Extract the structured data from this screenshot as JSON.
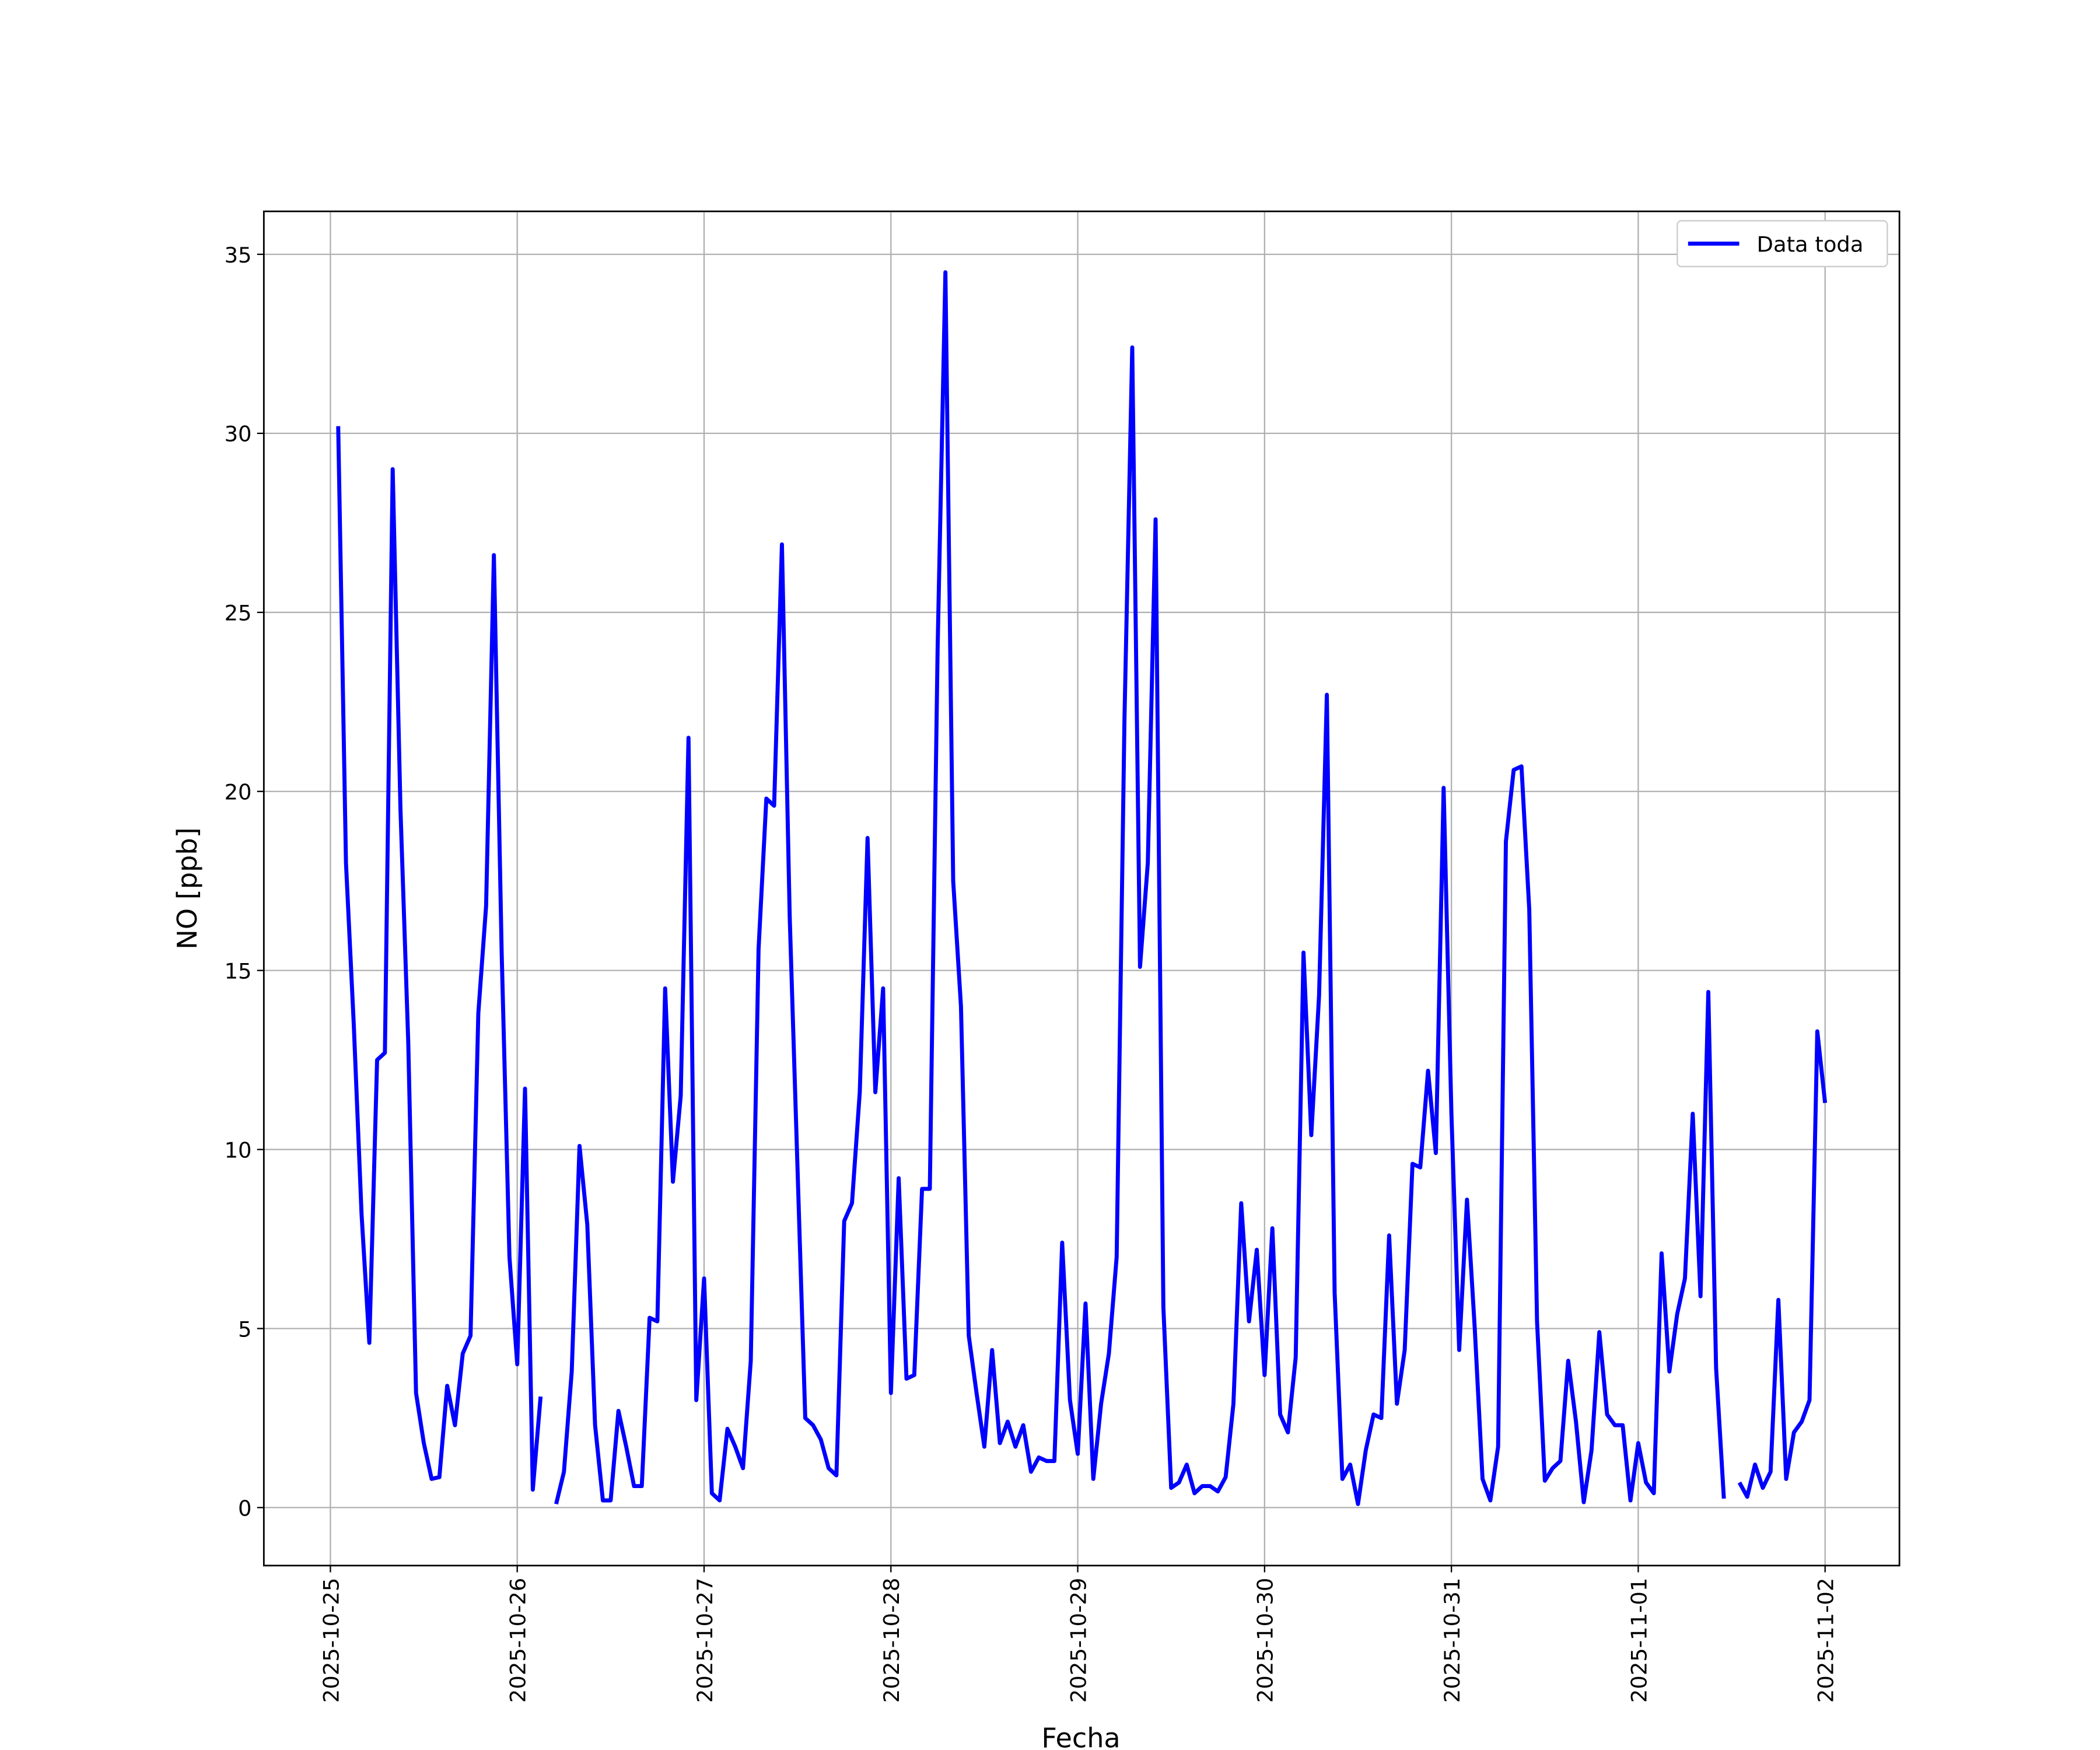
{
  "chart_data": {
    "type": "line",
    "xlabel": "Fecha",
    "ylabel": "NO [ppb]",
    "x": [
      "2025-10-25 01:00",
      "2025-10-25 02:00",
      "2025-10-25 03:00",
      "2025-10-25 04:00",
      "2025-10-25 05:00",
      "2025-10-25 06:00",
      "2025-10-25 07:00",
      "2025-10-25 08:00",
      "2025-10-25 09:00",
      "2025-10-25 10:00",
      "2025-10-25 11:00",
      "2025-10-25 12:00",
      "2025-10-25 13:00",
      "2025-10-25 14:00",
      "2025-10-25 15:00",
      "2025-10-25 16:00",
      "2025-10-25 17:00",
      "2025-10-25 18:00",
      "2025-10-25 19:00",
      "2025-10-25 20:00",
      "2025-10-25 21:00",
      "2025-10-25 22:00",
      "2025-10-25 23:00",
      "2025-10-26 00:00",
      "2025-10-26 01:00",
      "2025-10-26 02:00",
      "2025-10-26 03:00",
      "2025-10-26 04:00",
      "2025-10-26 05:00",
      "2025-10-26 06:00",
      "2025-10-26 07:00",
      "2025-10-26 08:00",
      "2025-10-26 09:00",
      "2025-10-26 10:00",
      "2025-10-26 11:00",
      "2025-10-26 12:00",
      "2025-10-26 13:00",
      "2025-10-26 14:00",
      "2025-10-26 15:00",
      "2025-10-26 16:00",
      "2025-10-26 17:00",
      "2025-10-26 18:00",
      "2025-10-26 19:00",
      "2025-10-26 20:00",
      "2025-10-26 21:00",
      "2025-10-26 22:00",
      "2025-10-26 23:00",
      "2025-10-27 00:00",
      "2025-10-27 01:00",
      "2025-10-27 02:00",
      "2025-10-27 03:00",
      "2025-10-27 04:00",
      "2025-10-27 05:00",
      "2025-10-27 06:00",
      "2025-10-27 07:00",
      "2025-10-27 08:00",
      "2025-10-27 09:00",
      "2025-10-27 10:00",
      "2025-10-27 11:00",
      "2025-10-27 12:00",
      "2025-10-27 13:00",
      "2025-10-27 14:00",
      "2025-10-27 15:00",
      "2025-10-27 16:00",
      "2025-10-27 17:00",
      "2025-10-27 18:00",
      "2025-10-27 19:00",
      "2025-10-27 20:00",
      "2025-10-27 21:00",
      "2025-10-27 22:00",
      "2025-10-27 23:00",
      "2025-10-28 00:00",
      "2025-10-28 01:00",
      "2025-10-28 02:00",
      "2025-10-28 03:00",
      "2025-10-28 04:00",
      "2025-10-28 05:00",
      "2025-10-28 06:00",
      "2025-10-28 07:00",
      "2025-10-28 08:00",
      "2025-10-28 09:00",
      "2025-10-28 10:00",
      "2025-10-28 11:00",
      "2025-10-28 12:00",
      "2025-10-28 13:00",
      "2025-10-28 14:00",
      "2025-10-28 15:00",
      "2025-10-28 16:00",
      "2025-10-28 17:00",
      "2025-10-28 18:00",
      "2025-10-28 19:00",
      "2025-10-28 20:00",
      "2025-10-28 21:00",
      "2025-10-28 22:00",
      "2025-10-28 23:00",
      "2025-10-29 00:00",
      "2025-10-29 01:00",
      "2025-10-29 02:00",
      "2025-10-29 03:00",
      "2025-10-29 04:00",
      "2025-10-29 05:00",
      "2025-10-29 06:00",
      "2025-10-29 07:00",
      "2025-10-29 08:00",
      "2025-10-29 09:00",
      "2025-10-29 10:00",
      "2025-10-29 11:00",
      "2025-10-29 12:00",
      "2025-10-29 13:00",
      "2025-10-29 14:00",
      "2025-10-29 15:00",
      "2025-10-29 16:00",
      "2025-10-29 17:00",
      "2025-10-29 18:00",
      "2025-10-29 19:00",
      "2025-10-29 20:00",
      "2025-10-29 21:00",
      "2025-10-29 22:00",
      "2025-10-29 23:00",
      "2025-10-30 00:00",
      "2025-10-30 01:00",
      "2025-10-30 02:00",
      "2025-10-30 03:00",
      "2025-10-30 04:00",
      "2025-10-30 05:00",
      "2025-10-30 06:00",
      "2025-10-30 07:00",
      "2025-10-30 08:00",
      "2025-10-30 09:00",
      "2025-10-30 10:00",
      "2025-10-30 11:00",
      "2025-10-30 12:00",
      "2025-10-30 13:00",
      "2025-10-30 14:00",
      "2025-10-30 15:00",
      "2025-10-30 16:00",
      "2025-10-30 17:00",
      "2025-10-30 18:00",
      "2025-10-30 19:00",
      "2025-10-30 20:00",
      "2025-10-30 21:00",
      "2025-10-30 22:00",
      "2025-10-30 23:00",
      "2025-10-31 00:00",
      "2025-10-31 01:00",
      "2025-10-31 02:00",
      "2025-10-31 03:00",
      "2025-10-31 04:00",
      "2025-10-31 05:00",
      "2025-10-31 06:00",
      "2025-10-31 07:00",
      "2025-10-31 08:00",
      "2025-10-31 09:00",
      "2025-10-31 10:00",
      "2025-10-31 11:00",
      "2025-10-31 12:00",
      "2025-10-31 13:00",
      "2025-10-31 14:00",
      "2025-10-31 15:00",
      "2025-10-31 16:00",
      "2025-10-31 17:00",
      "2025-10-31 18:00",
      "2025-10-31 19:00",
      "2025-10-31 20:00",
      "2025-10-31 21:00",
      "2025-10-31 22:00",
      "2025-10-31 23:00",
      "2025-11-01 00:00",
      "2025-11-01 01:00",
      "2025-11-01 02:00",
      "2025-11-01 03:00",
      "2025-11-01 04:00",
      "2025-11-01 05:00",
      "2025-11-01 06:00",
      "2025-11-01 07:00",
      "2025-11-01 08:00",
      "2025-11-01 09:00",
      "2025-11-01 10:00",
      "2025-11-01 11:00",
      "2025-11-01 12:00",
      "2025-11-01 13:00",
      "2025-11-01 14:00",
      "2025-11-01 15:00",
      "2025-11-01 16:00",
      "2025-11-01 17:00",
      "2025-11-01 18:00",
      "2025-11-01 19:00",
      "2025-11-01 20:00",
      "2025-11-01 21:00",
      "2025-11-01 22:00",
      "2025-11-01 23:00",
      "2025-11-02 00:00"
    ],
    "series": [
      {
        "name": "Data toda",
        "color": "#0000ff",
        "values": [
          30.2,
          18.0,
          13.5,
          8.2,
          4.6,
          12.5,
          12.7,
          29.0,
          19.5,
          13.0,
          3.2,
          1.8,
          0.8,
          0.85,
          3.4,
          2.3,
          4.3,
          4.8,
          13.8,
          16.8,
          26.6,
          15.5,
          7.0,
          4.0,
          11.7,
          0.5,
          3.1,
          null,
          0.1,
          1.0,
          3.8,
          10.1,
          7.9,
          2.3,
          0.2,
          0.2,
          2.7,
          1.7,
          0.6,
          0.6,
          5.3,
          5.2,
          14.5,
          9.1,
          11.5,
          21.5,
          3.0,
          6.4,
          0.4,
          0.2,
          2.2,
          1.7,
          1.1,
          4.1,
          15.6,
          19.8,
          19.6,
          26.9,
          16.5,
          9.5,
          2.5,
          2.3,
          1.9,
          1.1,
          0.9,
          8.0,
          8.5,
          11.6,
          18.7,
          11.6,
          14.5,
          3.2,
          9.2,
          3.6,
          3.7,
          8.9,
          8.9,
          24.0,
          34.5,
          17.5,
          14.0,
          4.8,
          3.2,
          1.7,
          4.4,
          1.8,
          2.4,
          1.7,
          2.3,
          1.0,
          1.4,
          1.3,
          1.3,
          7.4,
          3.0,
          1.5,
          5.7,
          0.8,
          2.9,
          4.3,
          7.0,
          22.0,
          32.4,
          15.1,
          18.0,
          27.6,
          5.6,
          0.55,
          0.7,
          1.2,
          0.4,
          0.6,
          0.6,
          0.45,
          0.85,
          2.9,
          8.5,
          5.2,
          7.2,
          3.7,
          7.8,
          2.6,
          2.1,
          4.2,
          15.5,
          10.4,
          14.3,
          22.7,
          6.0,
          0.8,
          1.2,
          0.1,
          1.6,
          2.6,
          2.5,
          7.6,
          2.9,
          4.4,
          9.6,
          9.5,
          12.2,
          9.9,
          20.1,
          11.0,
          4.4,
          8.6,
          5.0,
          0.8,
          0.2,
          1.7,
          18.6,
          20.6,
          20.7,
          16.7,
          5.2,
          0.75,
          1.1,
          1.3,
          4.1,
          2.4,
          0.15,
          1.6,
          4.9,
          2.6,
          2.3,
          2.3,
          0.2,
          1.8,
          0.7,
          0.4,
          7.1,
          3.8,
          5.4,
          6.4,
          11.0,
          5.9,
          14.4,
          3.9,
          0.25,
          null,
          0.7,
          0.3,
          1.2,
          0.55,
          1.0,
          5.8,
          0.8,
          2.1,
          2.4,
          3.0,
          13.3,
          11.3
        ]
      }
    ],
    "xlim": [
      "2025-10-24 15:27",
      "2025-11-02 09:33"
    ],
    "xticks": [
      "2025-10-25",
      "2025-10-26",
      "2025-10-27",
      "2025-10-28",
      "2025-10-29",
      "2025-10-30",
      "2025-10-31",
      "2025-11-01",
      "2025-11-02"
    ],
    "ylim": [
      -1.62,
      36.2
    ],
    "yticks": [
      0,
      5,
      10,
      15,
      20,
      25,
      30,
      35
    ],
    "grid": true,
    "legend": "upper right"
  }
}
